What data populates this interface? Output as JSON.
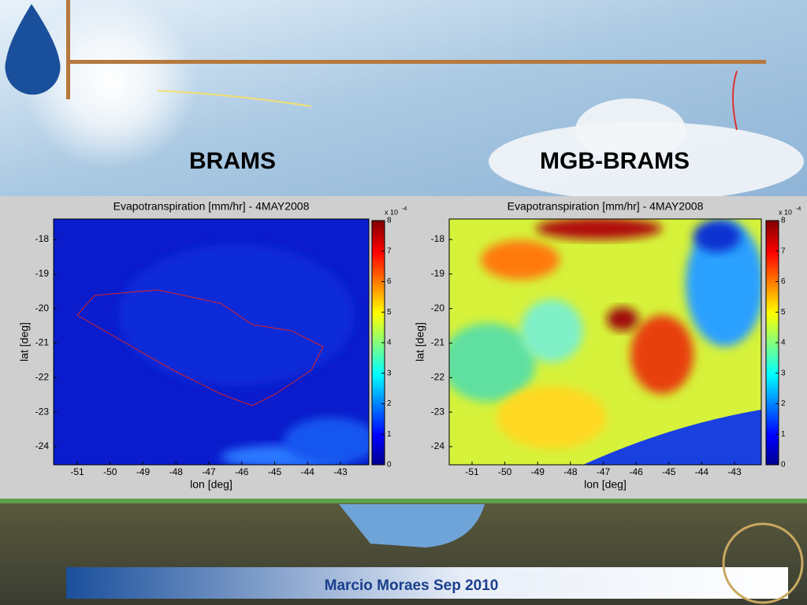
{
  "slide": {
    "headings": [
      "BRAMS",
      "MGB-BRAMS"
    ],
    "panels": [
      {
        "title": "Evapotranspiration [mm/hr] - 4MAY2008",
        "xlabel": "lon [deg]",
        "ylabel": "lat [deg]",
        "xticks": [
          -51,
          -50,
          -49,
          -48,
          -47,
          -46,
          -45,
          -44,
          -43
        ],
        "yticks": [
          -18,
          -19,
          -20,
          -21,
          -22,
          -23,
          -24
        ],
        "colorbar_ticks": [
          0,
          1,
          2,
          3,
          4,
          5,
          6,
          7,
          8
        ],
        "colorbar_scale": {
          "base": "x 10",
          "exponent": "-4"
        }
      },
      {
        "title": "Evapotranspiration [mm/hr] - 4MAY2008",
        "xlabel": "lon [deg]",
        "ylabel": "lat [deg]",
        "xticks": [
          -51,
          -50,
          -49,
          -48,
          -47,
          -46,
          -45,
          -44,
          -43
        ],
        "yticks": [
          -18,
          -19,
          -20,
          -21,
          -22,
          -23,
          -24
        ],
        "colorbar_ticks": [
          0,
          1,
          2,
          3,
          4,
          5,
          6,
          7,
          8
        ],
        "colorbar_scale": {
          "base": "x 10",
          "exponent": "-4"
        }
      }
    ],
    "footer": "Marcio Moraes Sep 2010"
  }
}
